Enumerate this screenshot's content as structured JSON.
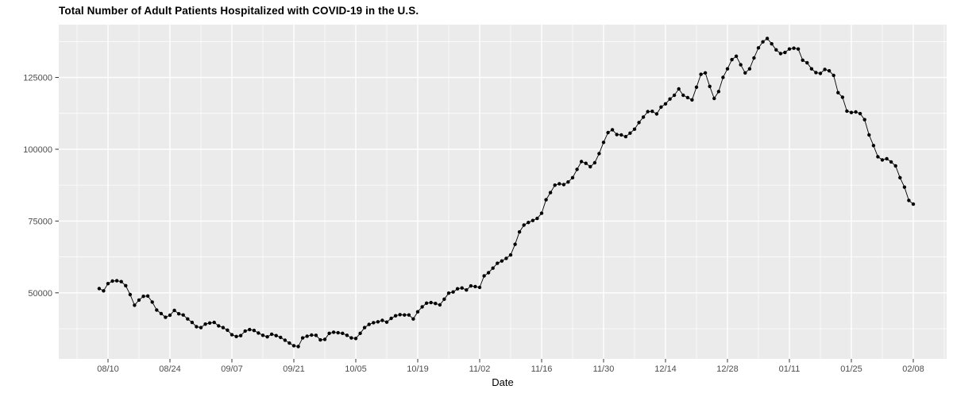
{
  "title": "Total Number of Adult Patients Hospitalized with COVID-19 in the U.S.",
  "chart_data": {
    "type": "line",
    "title": "Total Number of Adult Patients Hospitalized with COVID-19 in the U.S.",
    "xlabel": "Date",
    "ylabel": "",
    "legend": false,
    "grid": true,
    "marker": "filled-circle",
    "series_color": "#000000",
    "panel_bg": "#EBEBEB",
    "grid_color": "#FFFFFF",
    "axis_text_color": "#4D4D4D",
    "start_date": "08/08",
    "end_date": "02/08",
    "frequency": "daily",
    "x_tick_labels": [
      "08/10",
      "08/24",
      "09/07",
      "09/21",
      "10/05",
      "10/19",
      "11/02",
      "11/16",
      "11/30",
      "12/14",
      "12/28",
      "01/11",
      "01/25",
      "02/08"
    ],
    "x_tick_first_index": 2,
    "x_tick_step_days": 14,
    "y_ticks": [
      50000,
      75000,
      100000,
      125000
    ],
    "y_tick_labels": [
      "50000",
      "75000",
      "100000",
      "125000"
    ],
    "y_minor_ticks": [
      37500,
      62500,
      87500,
      112500,
      137500
    ],
    "ylim": [
      27000,
      143400
    ],
    "values": [
      51500,
      50700,
      53200,
      54100,
      54200,
      53900,
      52500,
      49400,
      45700,
      47500,
      48800,
      48900,
      46800,
      44000,
      42800,
      41500,
      42200,
      43900,
      42700,
      42300,
      40900,
      39700,
      38200,
      37900,
      39100,
      39500,
      39700,
      38500,
      37900,
      37000,
      35400,
      34800,
      35100,
      36700,
      37200,
      36900,
      36000,
      35200,
      34700,
      35600,
      35100,
      34500,
      33500,
      32500,
      31600,
      31300,
      34300,
      34900,
      35300,
      35200,
      33600,
      33800,
      35900,
      36300,
      36100,
      35900,
      35200,
      34300,
      34100,
      35900,
      37900,
      39000,
      39600,
      39900,
      40400,
      39800,
      41100,
      42000,
      42400,
      42300,
      42300,
      40900,
      43400,
      45100,
      46400,
      46600,
      46300,
      45800,
      47800,
      49900,
      50300,
      51400,
      51700,
      51000,
      52400,
      52200,
      51900,
      55900,
      57000,
      58600,
      60300,
      61100,
      62000,
      63200,
      66900,
      71200,
      73600,
      74500,
      75200,
      75900,
      77700,
      82400,
      84900,
      87500,
      88000,
      87700,
      88600,
      90100,
      93000,
      95700,
      95100,
      93900,
      95300,
      98500,
      102400,
      105800,
      106800,
      105100,
      105000,
      104400,
      105600,
      107000,
      109300,
      111200,
      113100,
      113200,
      112300,
      114700,
      115800,
      117500,
      118800,
      121000,
      118800,
      118000,
      117200,
      121600,
      126100,
      126600,
      121900,
      117700,
      120100,
      125000,
      128000,
      131200,
      132400,
      129400,
      126600,
      128000,
      131800,
      135300,
      137400,
      138600,
      136700,
      134600,
      133300,
      133700,
      134900,
      135200,
      134900,
      131000,
      130100,
      128000,
      126700,
      126400,
      127800,
      127300,
      125700,
      119700,
      118100,
      113300,
      112800,
      113000,
      112400,
      110300,
      105000,
      101300,
      97400,
      96300,
      96700,
      95600,
      94200,
      90100,
      86800,
      82200,
      80900
    ]
  }
}
